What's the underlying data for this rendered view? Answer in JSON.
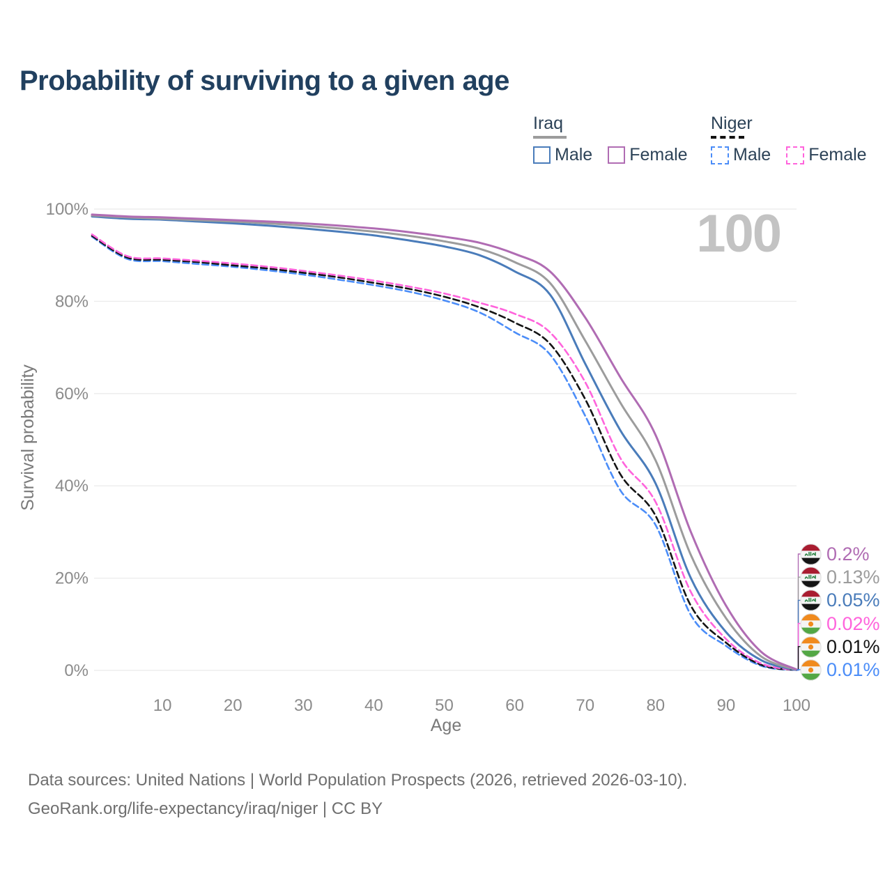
{
  "title": "Probability of surviving to a given age",
  "watermark": "100",
  "legend": {
    "groups": [
      {
        "label": "Iraq",
        "line_style": "solid",
        "underline_color": "#9c9c9c",
        "items": [
          {
            "label": "Male",
            "color": "#4a7cba"
          },
          {
            "label": "Female",
            "color": "#b06cb3"
          }
        ]
      },
      {
        "label": "Niger",
        "line_style": "dashed",
        "underline_color": "#111111",
        "items": [
          {
            "label": "Male",
            "color": "#4b8df8"
          },
          {
            "label": "Female",
            "color": "#ff64dc"
          }
        ]
      }
    ]
  },
  "chart_data": {
    "type": "line",
    "title": "Probability of surviving to a given age",
    "xlabel": "Age",
    "ylabel": "Survival probability",
    "xlim": [
      0,
      100
    ],
    "ylim": [
      0,
      100
    ],
    "x_ticks": [
      10,
      20,
      30,
      40,
      50,
      60,
      70,
      80,
      90,
      100
    ],
    "y_ticks": [
      0,
      20,
      40,
      60,
      80,
      100
    ],
    "y_tick_suffix": "%",
    "grid": "horizontal",
    "legend_position": "top-right",
    "x": [
      0,
      5,
      10,
      15,
      20,
      25,
      30,
      35,
      40,
      45,
      50,
      55,
      60,
      65,
      70,
      75,
      80,
      85,
      90,
      95,
      100
    ],
    "series": [
      {
        "name": "Iraq Female",
        "country": "iraq",
        "sex": "female",
        "style": "solid",
        "color": "#b06cb3",
        "end_label": "0.2%",
        "values": [
          98.8,
          98.4,
          98.2,
          97.9,
          97.6,
          97.3,
          96.9,
          96.4,
          95.8,
          95.0,
          94.0,
          92.7,
          90.3,
          86.5,
          76.5,
          63.5,
          51.0,
          30.0,
          14.0,
          4.0,
          0.2
        ]
      },
      {
        "name": "Iraq Both sexes",
        "country": "iraq",
        "sex": "total",
        "style": "solid",
        "color": "#9c9c9c",
        "end_label": "0.13%",
        "values": [
          98.6,
          98.2,
          97.9,
          97.6,
          97.3,
          96.9,
          96.4,
          95.8,
          95.1,
          94.2,
          93.0,
          91.4,
          88.5,
          84.0,
          71.5,
          58.0,
          45.5,
          25.0,
          11.3,
          3.0,
          0.13
        ]
      },
      {
        "name": "Iraq Male",
        "country": "iraq",
        "sex": "male",
        "style": "solid",
        "color": "#4a7cba",
        "end_label": "0.05%",
        "values": [
          98.4,
          97.9,
          97.7,
          97.3,
          96.9,
          96.4,
          95.8,
          95.1,
          94.3,
          93.2,
          91.9,
          90.0,
          86.5,
          81.5,
          66.5,
          52.0,
          40.5,
          20.0,
          8.3,
          2.2,
          0.05
        ]
      },
      {
        "name": "Niger Female",
        "country": "niger",
        "sex": "female",
        "style": "dashed",
        "color": "#ff64dc",
        "end_label": "0.02%",
        "values": [
          94.5,
          89.8,
          89.3,
          88.8,
          88.2,
          87.5,
          86.6,
          85.6,
          84.5,
          83.2,
          81.7,
          79.7,
          77.3,
          73.3,
          62.5,
          46.0,
          36.5,
          17.0,
          6.8,
          1.5,
          0.02
        ]
      },
      {
        "name": "Niger Both sexes",
        "country": "niger",
        "sex": "total",
        "style": "dashed",
        "color": "#141414",
        "end_label": "0.01%",
        "values": [
          94.2,
          89.5,
          89.0,
          88.5,
          87.8,
          87.1,
          86.2,
          85.2,
          84.0,
          82.7,
          81.0,
          78.7,
          75.4,
          70.8,
          58.8,
          42.5,
          33.5,
          14.0,
          6.0,
          1.2,
          0.01
        ]
      },
      {
        "name": "Niger Male",
        "country": "niger",
        "sex": "male",
        "style": "dashed",
        "color": "#4b8df8",
        "end_label": "0.01%",
        "values": [
          94.0,
          89.2,
          88.7,
          88.1,
          87.5,
          86.7,
          85.8,
          84.7,
          83.5,
          82.1,
          80.2,
          77.6,
          73.3,
          68.5,
          55.2,
          39.0,
          31.5,
          12.0,
          5.3,
          1.0,
          0.01
        ]
      }
    ]
  },
  "footer": {
    "line1": "Data sources: United Nations | World Population Prospects (2026, retrieved 2026-03-10).",
    "line2": "GeoRank.org/life-expectancy/iraq/niger | CC BY"
  }
}
